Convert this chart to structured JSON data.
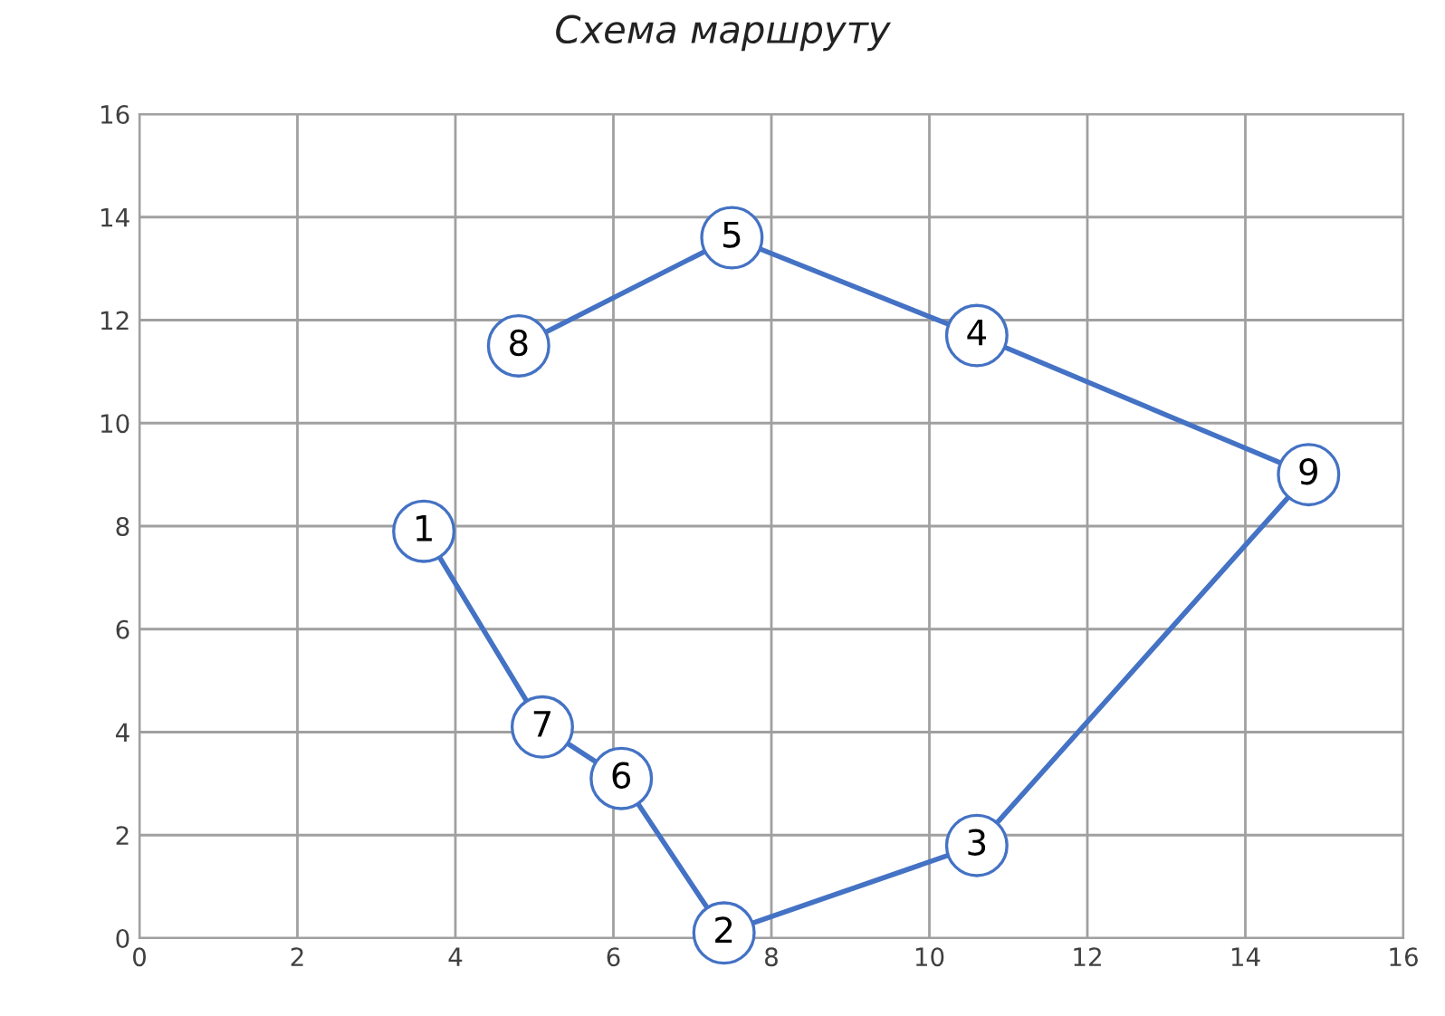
{
  "chart_data": {
    "type": "line",
    "title": "Схема маршруту",
    "series": [
      {
        "color": "#4472c4",
        "x": [
          3.6,
          5.1,
          6.1,
          7.4,
          10.6,
          14.8,
          10.6,
          7.5,
          4.8
        ],
        "values": [
          7.9,
          4.1,
          3.1,
          0.1,
          1.8,
          9.0,
          11.7,
          13.6,
          11.5
        ]
      }
    ],
    "annotations": [
      {
        "text": "1",
        "x": 3.6,
        "y": 7.9
      },
      {
        "text": "7",
        "x": 5.1,
        "y": 4.1
      },
      {
        "text": "6",
        "x": 6.1,
        "y": 3.1
      },
      {
        "text": "2",
        "x": 7.4,
        "y": 0.1
      },
      {
        "text": "3",
        "x": 10.6,
        "y": 1.8
      },
      {
        "text": "9",
        "x": 14.8,
        "y": 9.0
      },
      {
        "text": "4",
        "x": 10.6,
        "y": 11.7
      },
      {
        "text": "5",
        "x": 7.5,
        "y": 13.6
      },
      {
        "text": "8",
        "x": 4.8,
        "y": 11.5
      }
    ],
    "xlim": [
      0,
      16
    ],
    "ylim": [
      0,
      16
    ],
    "xticks": [
      0,
      2,
      4,
      6,
      8,
      10,
      12,
      14,
      16
    ],
    "yticks": [
      0,
      2,
      4,
      6,
      8,
      10,
      12,
      14,
      16
    ],
    "grid": true,
    "marker": "circle",
    "line_style": "solid",
    "legend": false
  }
}
